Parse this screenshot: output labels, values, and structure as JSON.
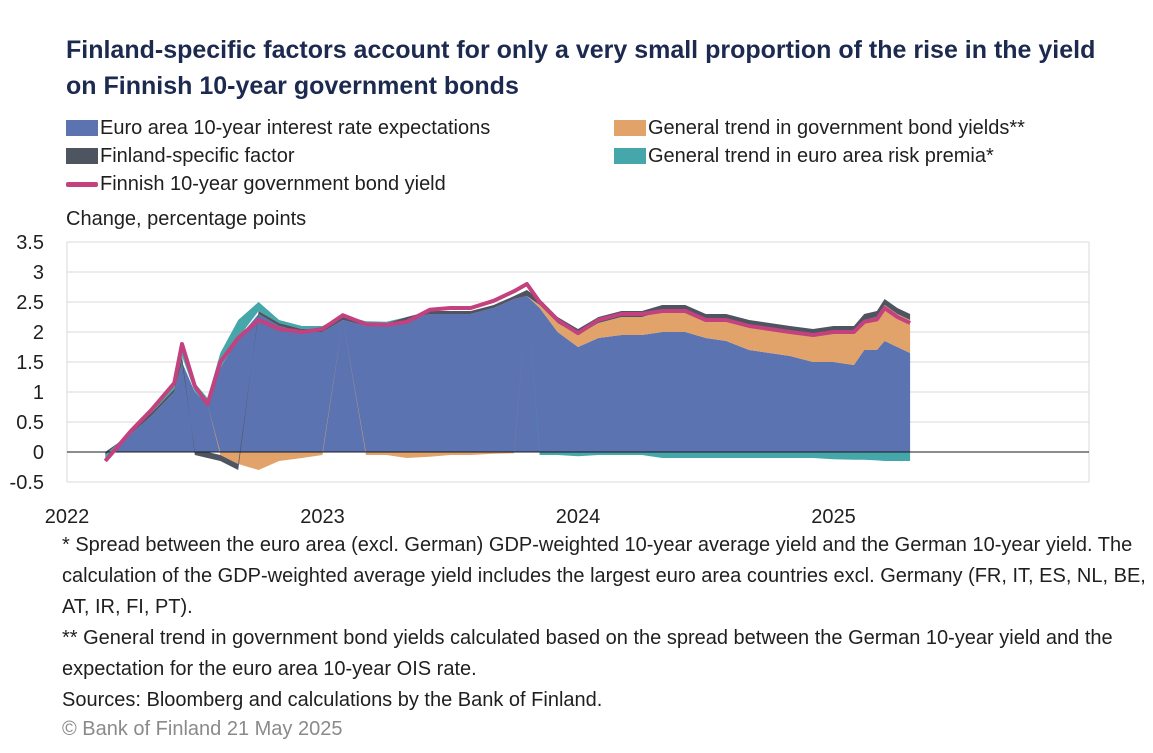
{
  "title": "Finland-specific factors account for only a very small proportion of the rise in the yield on Finnish 10-year government bonds",
  "legend": {
    "euro_rate_exp": "Euro area 10-year interest rate expectations",
    "general_trend_gov": "General trend in government bond yields**",
    "finland_specific": "Finland-specific factor",
    "euro_risk_premia": "General trend in euro area risk premia*",
    "finnish_yield": "Finnish 10-year government bond yield"
  },
  "colors": {
    "euro_rate_exp": "#5b73b1",
    "general_trend_gov": "#e2a36b",
    "finland_specific": "#4f5560",
    "euro_risk_premia": "#45a7a9",
    "finnish_yield": "#c2417e"
  },
  "footnotes": {
    "note1": "* Spread between the euro area (excl. German) GDP-weighted 10-year average yield and the German 10-year yield. The calculation of the GDP-weighted average yield includes the largest euro area countries excl. Germany (FR, IT, ES, NL, BE, AT, IR, FI, PT).",
    "note2": "** General trend in government bond yields calculated based on the spread between the German 10-year yield and the expectation for the euro area 10-year OIS rate.",
    "sources": "Sources: Bloomberg and calculations by the Bank of Finland."
  },
  "copyright": "© Bank of Finland 21 May 2025",
  "chart_data": {
    "type": "area",
    "title": "Finland-specific factors account for only a very small proportion of the rise in the yield on Finnish 10-year government bonds",
    "ylabel": "Change, percentage points",
    "xlabel": "",
    "ylim": [
      -0.5,
      3.5
    ],
    "yticks": [
      3.5,
      3,
      2.5,
      2,
      1.5,
      1,
      0.5,
      0,
      -0.5
    ],
    "ytick_labels": [
      "3.5",
      "3",
      "2.5",
      "2",
      "1.5",
      "1",
      "0.5",
      "0",
      "-0.5"
    ],
    "xlim": [
      2022.0,
      2026.0
    ],
    "xticks": [
      2022,
      2023,
      2024,
      2025
    ],
    "xtick_labels": [
      "2022",
      "2023",
      "2024",
      "2025"
    ],
    "grid": true,
    "legend_position": "top",
    "x": [
      2022.15,
      2022.25,
      2022.33,
      2022.42,
      2022.45,
      2022.5,
      2022.55,
      2022.6,
      2022.67,
      2022.75,
      2022.83,
      2022.92,
      2023.0,
      2023.08,
      2023.17,
      2023.25,
      2023.33,
      2023.42,
      2023.5,
      2023.58,
      2023.67,
      2023.75,
      2023.8,
      2023.85,
      2023.92,
      2024.0,
      2024.08,
      2024.17,
      2024.25,
      2024.33,
      2024.42,
      2024.5,
      2024.58,
      2024.67,
      2024.75,
      2024.83,
      2024.92,
      2025.0,
      2025.08,
      2025.12,
      2025.17,
      2025.2,
      2025.25,
      2025.3
    ],
    "series": [
      {
        "name": "Euro area 10-year interest rate expectations",
        "key": "euro_rate_exp",
        "values": [
          0.0,
          0.3,
          0.6,
          1.0,
          1.5,
          1.0,
          0.8,
          1.4,
          1.9,
          2.3,
          2.1,
          2.0,
          2.0,
          2.2,
          2.1,
          2.1,
          2.2,
          2.3,
          2.3,
          2.3,
          2.4,
          2.55,
          2.6,
          2.4,
          2.0,
          1.75,
          1.9,
          1.95,
          1.95,
          2.0,
          2.0,
          1.9,
          1.85,
          1.7,
          1.65,
          1.6,
          1.5,
          1.5,
          1.45,
          1.7,
          1.7,
          1.85,
          1.75,
          1.65
        ]
      },
      {
        "name": "General trend in government bond yields**",
        "key": "general_trend_gov",
        "values": [
          0.0,
          0.0,
          0.0,
          0.0,
          0.0,
          0.0,
          0.0,
          -0.05,
          -0.2,
          -0.3,
          -0.15,
          -0.1,
          -0.05,
          0.0,
          -0.05,
          -0.05,
          -0.1,
          -0.08,
          -0.05,
          -0.05,
          -0.03,
          -0.02,
          0.0,
          0.05,
          0.15,
          0.2,
          0.25,
          0.3,
          0.3,
          0.35,
          0.35,
          0.3,
          0.35,
          0.4,
          0.4,
          0.4,
          0.45,
          0.5,
          0.55,
          0.5,
          0.55,
          0.6,
          0.55,
          0.55
        ]
      },
      {
        "name": "Finland-specific factor",
        "key": "finland_specific",
        "values": [
          -0.05,
          0.05,
          0.05,
          0.05,
          0.1,
          -0.05,
          -0.1,
          -0.1,
          -0.1,
          0.05,
          0.05,
          0.05,
          0.05,
          0.05,
          0.05,
          0.05,
          0.05,
          0.05,
          0.05,
          0.05,
          0.05,
          0.05,
          0.1,
          0.1,
          0.1,
          0.1,
          0.1,
          0.1,
          0.1,
          0.1,
          0.1,
          0.1,
          0.1,
          0.1,
          0.1,
          0.1,
          0.1,
          0.1,
          0.1,
          0.1,
          0.1,
          0.1,
          0.1,
          0.1
        ]
      },
      {
        "name": "General trend in euro area risk premia*",
        "key": "euro_risk_premia",
        "values": [
          -0.1,
          0.0,
          0.05,
          0.1,
          0.2,
          0.15,
          0.1,
          0.25,
          0.3,
          0.15,
          0.05,
          0.05,
          0.05,
          0.03,
          0.03,
          0.02,
          0.0,
          0.0,
          0.0,
          0.0,
          0.0,
          0.0,
          0.0,
          -0.05,
          -0.05,
          -0.07,
          -0.05,
          -0.05,
          -0.05,
          -0.1,
          -0.1,
          -0.1,
          -0.1,
          -0.1,
          -0.1,
          -0.1,
          -0.1,
          -0.12,
          -0.13,
          -0.13,
          -0.14,
          -0.15,
          -0.15,
          -0.15
        ]
      },
      {
        "name": "Finnish 10-year government bond yield",
        "key": "finnish_yield",
        "kind": "line",
        "values": [
          -0.15,
          0.35,
          0.7,
          1.15,
          1.8,
          1.1,
          0.8,
          1.5,
          1.9,
          2.2,
          2.05,
          2.0,
          2.05,
          2.28,
          2.13,
          2.12,
          2.17,
          2.37,
          2.4,
          2.4,
          2.52,
          2.68,
          2.8,
          2.5,
          2.2,
          1.98,
          2.2,
          2.3,
          2.3,
          2.35,
          2.35,
          2.2,
          2.2,
          2.1,
          2.05,
          2.0,
          1.95,
          2.0,
          2.0,
          2.17,
          2.21,
          2.4,
          2.25,
          2.15
        ]
      }
    ]
  }
}
